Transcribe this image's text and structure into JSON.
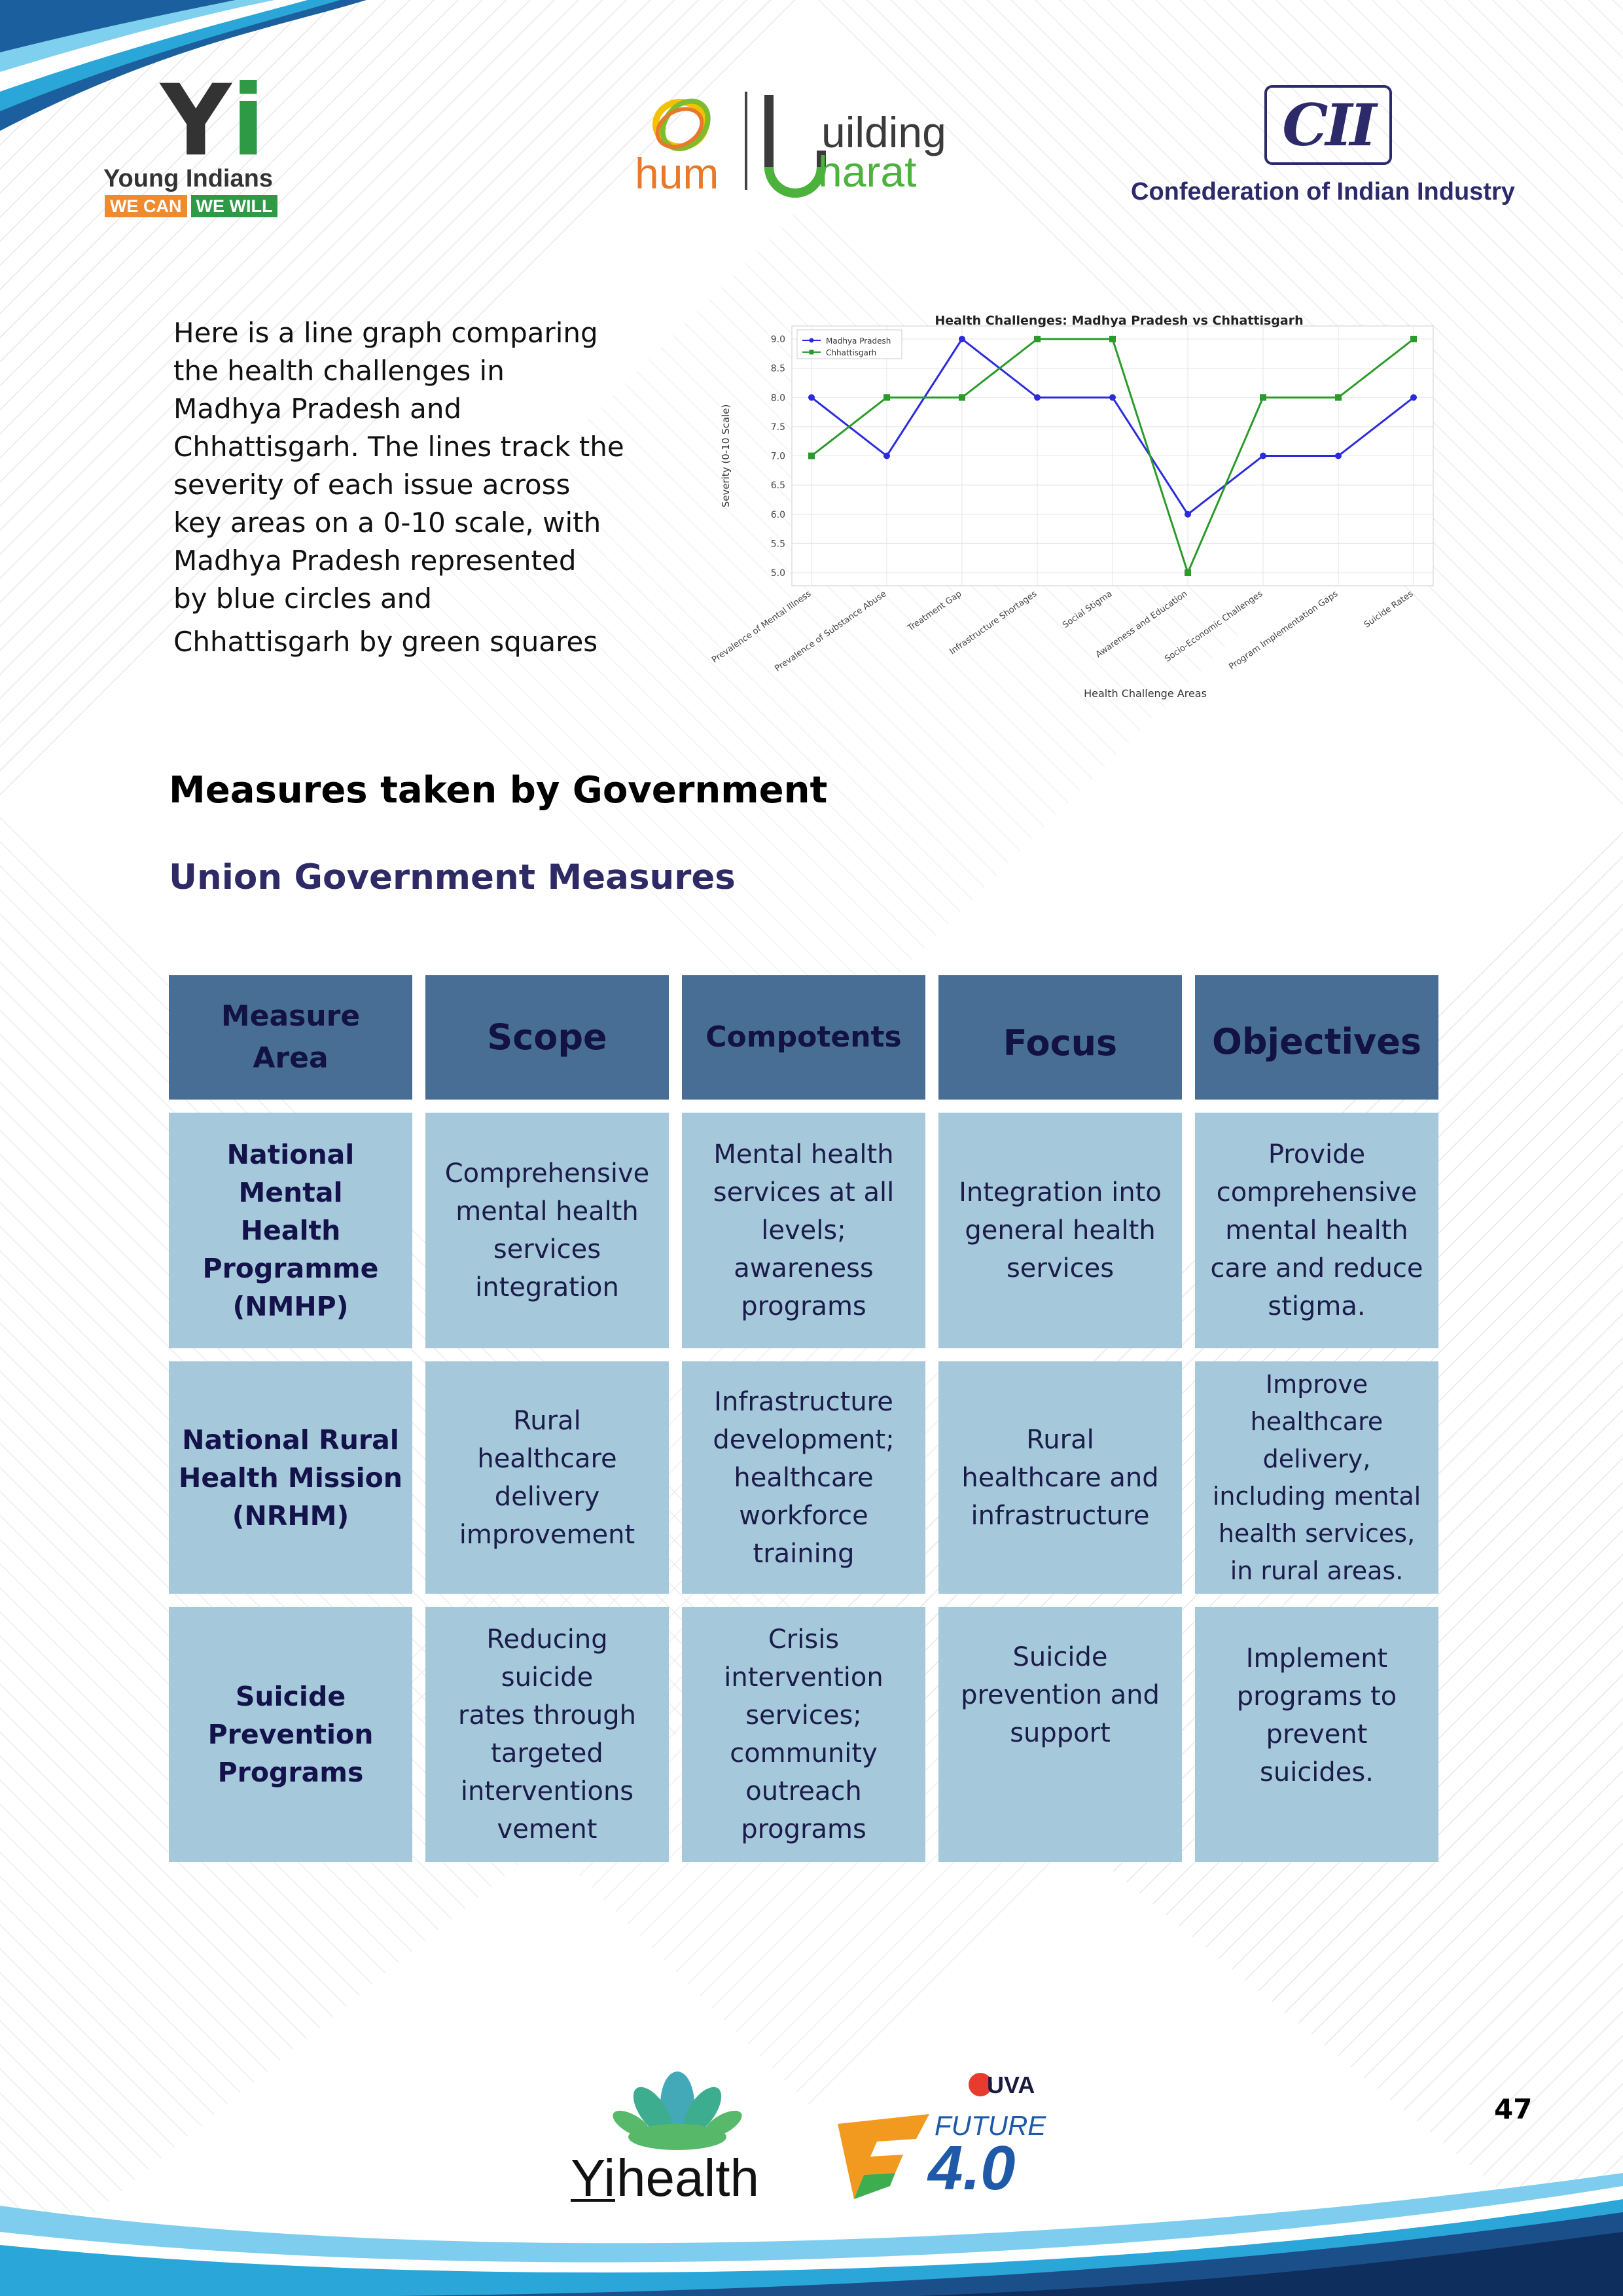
{
  "header": {
    "yi_logo": {
      "letters": "Yi",
      "name": "Young Indians",
      "tag_left": "WE CAN",
      "tag_right": "WE WILL"
    },
    "hum_logo": {
      "left": "hum",
      "right_top": "uilding",
      "right_bottom": "harat"
    },
    "cii_logo": {
      "letters": "CII",
      "name": "Confederation of Indian Industry"
    }
  },
  "intro": {
    "lines": [
      "Here is a line graph comparing",
      "the health challenges in",
      "Madhya Pradesh and",
      "Chhattisgarh. The lines track the",
      "severity of each issue across",
      "key areas on a 0-10 scale, with",
      "Madhya Pradesh represented",
      "by blue circles and",
      "Chhattisgarh by green squares"
    ]
  },
  "chart_data": {
    "type": "line",
    "title": "Health Challenges: Madhya Pradesh vs Chhattisgarh",
    "xlabel": "Health Challenge Areas",
    "ylabel": "Severity (0-10 Scale)",
    "ylim": [
      5.0,
      9.0
    ],
    "yticks": [
      "5.0",
      "5.5",
      "6.0",
      "6.5",
      "7.0",
      "7.5",
      "8.0",
      "8.5",
      "9.0"
    ],
    "grid": true,
    "legend_position": "top-left",
    "categories": [
      "Prevalence of Mental Illness",
      "Prevalence of Substance Abuse",
      "Treatment Gap",
      "Infrastructure Shortages",
      "Social Stigma",
      "Awareness and Education",
      "Socio-Economic Challenges",
      "Program Implementation Gaps",
      "Suicide Rates"
    ],
    "series": [
      {
        "name": "Madhya Pradesh",
        "color": "#2b2bdc",
        "marker": "circle",
        "values": [
          8,
          7,
          9,
          8,
          8,
          6,
          7,
          7,
          8
        ]
      },
      {
        "name": "Chhattisgarh",
        "color": "#2a9a2a",
        "marker": "square",
        "values": [
          7,
          8,
          8,
          9,
          9,
          5,
          8,
          8,
          9
        ]
      }
    ]
  },
  "headings": {
    "measures": "Measures taken by Government",
    "union": "Union Government Measures"
  },
  "table": {
    "headers": [
      [
        "Measure",
        "Area"
      ],
      [
        "Scope"
      ],
      [
        "Compotents"
      ],
      [
        "Focus"
      ],
      [
        "Objectives"
      ]
    ],
    "rows": [
      [
        [
          "National Mental",
          "Health",
          "Programme",
          "(NMHP)"
        ],
        [
          "Comprehensive",
          "mental health",
          "services",
          "integration"
        ],
        [
          "Mental health",
          "services at all",
          "levels;",
          "awareness",
          "programs"
        ],
        [
          "Integration into",
          "general health",
          "services"
        ],
        [
          "Provide",
          "comprehensive",
          "mental health",
          "care and reduce",
          "stigma."
        ]
      ],
      [
        [
          "National Rural",
          "Health Mission",
          "(NRHM)"
        ],
        [
          "Rural",
          "healthcare",
          "delivery",
          "improvement"
        ],
        [
          "Infrastructure",
          "development;",
          "healthcare",
          "workforce",
          "training"
        ],
        [
          "Rural",
          "healthcare and",
          "infrastructure"
        ],
        [
          "Improve",
          "healthcare",
          "delivery,",
          "including mental",
          "health services,",
          "in rural areas."
        ]
      ],
      [
        [
          "Suicide",
          "Prevention",
          "Programs"
        ],
        [
          "Reducing",
          "suicide",
          "rates through",
          "targeted",
          "interventions",
          "vement"
        ],
        [
          "Crisis",
          "intervention",
          "services;",
          "community",
          "outreach",
          "programs"
        ],
        [
          "Suicide",
          "prevention and",
          "support"
        ],
        [
          "Implement",
          "programs to",
          "prevent",
          "suicides."
        ]
      ]
    ]
  },
  "footer": {
    "yi_health": {
      "letters": "Yi",
      "word": "health"
    },
    "future_logo": {
      "brand": "UVA",
      "word": "FUTURE",
      "number": "4.0"
    },
    "page_number": "47"
  },
  "colors": {
    "header_cell": "#486e95",
    "body_cell": "#a5c8da",
    "navy_text": "#14124a",
    "union_heading": "#2e2a66"
  }
}
